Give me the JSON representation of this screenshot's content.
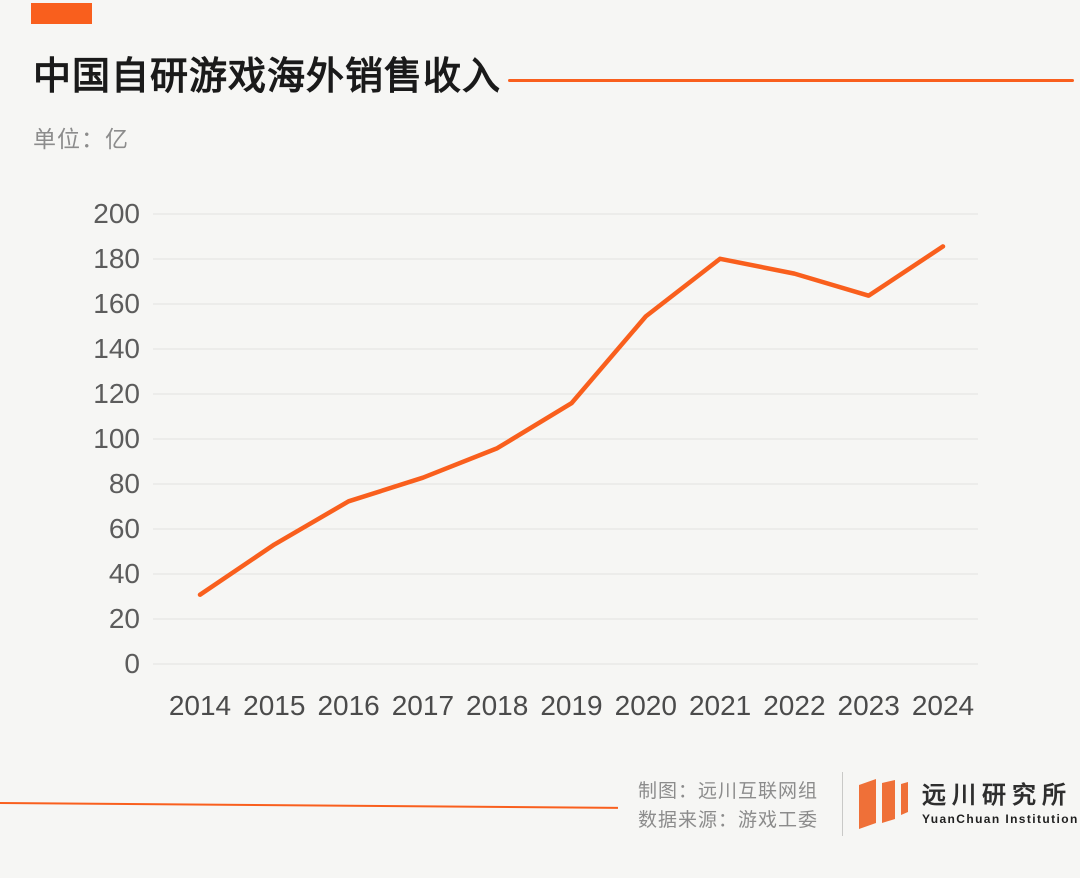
{
  "header": {
    "title": "中国自研游戏海外销售收入",
    "unit_label": "单位：亿"
  },
  "chart_data": {
    "type": "line",
    "title": "中国自研游戏海外销售收入",
    "unit": "亿",
    "categories": [
      "2014",
      "2015",
      "2016",
      "2017",
      "2018",
      "2019",
      "2020",
      "2021",
      "2022",
      "2023",
      "2024"
    ],
    "series": [
      {
        "name": "中国自研游戏海外销售收入",
        "values": [
          30.8,
          53.1,
          72.3,
          82.8,
          95.9,
          115.9,
          154.5,
          180.1,
          173.5,
          163.7,
          185.6
        ]
      }
    ],
    "xlabel": "",
    "ylabel": "",
    "ylim": [
      0,
      200
    ],
    "ytick_step": 20,
    "grid": true,
    "legend_position": "none",
    "line_color": "#F95F1D"
  },
  "footer": {
    "credit_line1": "制图：远川互联网组",
    "credit_line2": "数据来源：游戏工委",
    "logo_cn": "远川研究所",
    "logo_en": "YuanChuan Institution"
  },
  "colors": {
    "accent": "#F95F1D",
    "background": "#F6F6F4",
    "gridline": "#E3E3E1"
  }
}
